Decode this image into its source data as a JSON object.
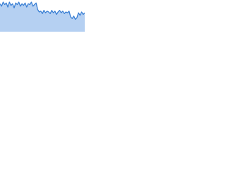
{
  "chart_data": {
    "type": "area",
    "color": "#3a7fd4",
    "fill": "#b5d0f2",
    "values": [
      34,
      31,
      36,
      33,
      35,
      30,
      36,
      32,
      34,
      29,
      35,
      33,
      36,
      31,
      34,
      32,
      35,
      30,
      34,
      33,
      36,
      31,
      33,
      35,
      27,
      24,
      25,
      22,
      26,
      23,
      25,
      24,
      22,
      26,
      23,
      25,
      21,
      24,
      26,
      23,
      25,
      22,
      24,
      23,
      25,
      18,
      16,
      19,
      15,
      17,
      23,
      20,
      24,
      21,
      23
    ]
  }
}
